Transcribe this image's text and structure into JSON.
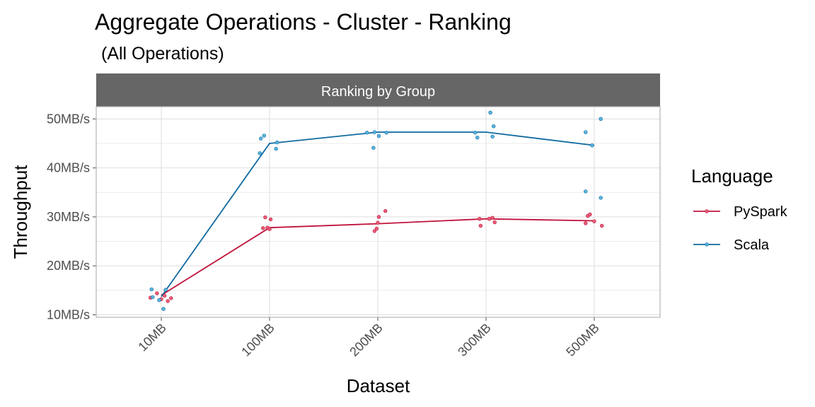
{
  "chart_data": {
    "type": "line",
    "title": "Aggregate Operations - Cluster - Ranking",
    "subtitle": "(All Operations)",
    "facet_label": "Ranking by Group",
    "xlabel": "Dataset",
    "ylabel": "Throughput",
    "categories": [
      "10MB",
      "100MB",
      "200MB",
      "300MB",
      "500MB"
    ],
    "y_ticks": [
      10,
      20,
      30,
      40,
      50
    ],
    "y_tick_labels": [
      "10MB/s",
      "20MB/s",
      "30MB/s",
      "40MB/s",
      "50MB/s"
    ],
    "ylim": [
      9.5,
      52.5
    ],
    "grid": true,
    "legend": {
      "title": "Language",
      "position": "right"
    },
    "series": [
      {
        "name": "PySpark",
        "color": "#c0143c",
        "point_fill": "#e8607a",
        "line": [
          14.0,
          27.8,
          28.6,
          29.6,
          29.2
        ],
        "points": [
          {
            "x": 0,
            "dx": -0.1,
            "y": 13.5
          },
          {
            "x": 0,
            "dx": -0.04,
            "y": 14.4
          },
          {
            "x": 0,
            "dx": 0.03,
            "y": 13.9
          },
          {
            "x": 0,
            "dx": 0.06,
            "y": 12.8
          },
          {
            "x": 0,
            "dx": 0.09,
            "y": 13.4
          },
          {
            "x": 0,
            "dx": 0.0,
            "y": 13.2
          },
          {
            "x": 1,
            "dx": -0.06,
            "y": 27.7
          },
          {
            "x": 1,
            "dx": -0.04,
            "y": 29.9
          },
          {
            "x": 1,
            "dx": -0.02,
            "y": 27.8
          },
          {
            "x": 1,
            "dx": 0.0,
            "y": 27.5
          },
          {
            "x": 1,
            "dx": 0.01,
            "y": 29.5
          },
          {
            "x": 2,
            "dx": -0.03,
            "y": 27.1
          },
          {
            "x": 2,
            "dx": -0.01,
            "y": 27.6
          },
          {
            "x": 2,
            "dx": 0.0,
            "y": 28.8
          },
          {
            "x": 2,
            "dx": 0.01,
            "y": 30.0
          },
          {
            "x": 2,
            "dx": 0.07,
            "y": 31.2
          },
          {
            "x": 3,
            "dx": -0.06,
            "y": 29.6
          },
          {
            "x": 3,
            "dx": -0.05,
            "y": 28.2
          },
          {
            "x": 3,
            "dx": 0.03,
            "y": 29.6
          },
          {
            "x": 3,
            "dx": 0.06,
            "y": 29.8
          },
          {
            "x": 3,
            "dx": 0.08,
            "y": 28.9
          },
          {
            "x": 4,
            "dx": -0.08,
            "y": 28.7
          },
          {
            "x": 4,
            "dx": -0.06,
            "y": 30.2
          },
          {
            "x": 4,
            "dx": -0.04,
            "y": 30.5
          },
          {
            "x": 4,
            "dx": 0.0,
            "y": 29.1
          },
          {
            "x": 4,
            "dx": 0.07,
            "y": 28.2
          }
        ]
      },
      {
        "name": "Scala",
        "color": "#0f6aa0",
        "point_fill": "#5ab6e0",
        "line": [
          13.7,
          45.0,
          47.3,
          47.3,
          44.6
        ],
        "points": [
          {
            "x": 0,
            "dx": -0.09,
            "y": 15.2
          },
          {
            "x": 0,
            "dx": -0.08,
            "y": 13.6
          },
          {
            "x": 0,
            "dx": -0.02,
            "y": 13.0
          },
          {
            "x": 0,
            "dx": 0.02,
            "y": 11.2
          },
          {
            "x": 0,
            "dx": 0.04,
            "y": 15.1
          },
          {
            "x": 1,
            "dx": -0.09,
            "y": 43.0
          },
          {
            "x": 1,
            "dx": -0.08,
            "y": 46.0
          },
          {
            "x": 1,
            "dx": -0.05,
            "y": 46.6
          },
          {
            "x": 1,
            "dx": 0.06,
            "y": 43.9
          },
          {
            "x": 1,
            "dx": 0.07,
            "y": 45.2
          },
          {
            "x": 2,
            "dx": -0.1,
            "y": 47.2
          },
          {
            "x": 2,
            "dx": -0.04,
            "y": 44.1
          },
          {
            "x": 2,
            "dx": -0.03,
            "y": 47.3
          },
          {
            "x": 2,
            "dx": 0.01,
            "y": 46.5
          },
          {
            "x": 2,
            "dx": 0.08,
            "y": 47.2
          },
          {
            "x": 3,
            "dx": -0.1,
            "y": 47.2
          },
          {
            "x": 3,
            "dx": -0.08,
            "y": 46.2
          },
          {
            "x": 3,
            "dx": 0.04,
            "y": 51.3
          },
          {
            "x": 3,
            "dx": 0.06,
            "y": 46.4
          },
          {
            "x": 3,
            "dx": 0.07,
            "y": 48.5
          },
          {
            "x": 4,
            "dx": -0.08,
            "y": 35.2
          },
          {
            "x": 4,
            "dx": -0.08,
            "y": 47.3
          },
          {
            "x": 4,
            "dx": -0.02,
            "y": 44.6
          },
          {
            "x": 4,
            "dx": 0.06,
            "y": 33.9
          },
          {
            "x": 4,
            "dx": 0.06,
            "y": 50.0
          }
        ]
      }
    ]
  }
}
